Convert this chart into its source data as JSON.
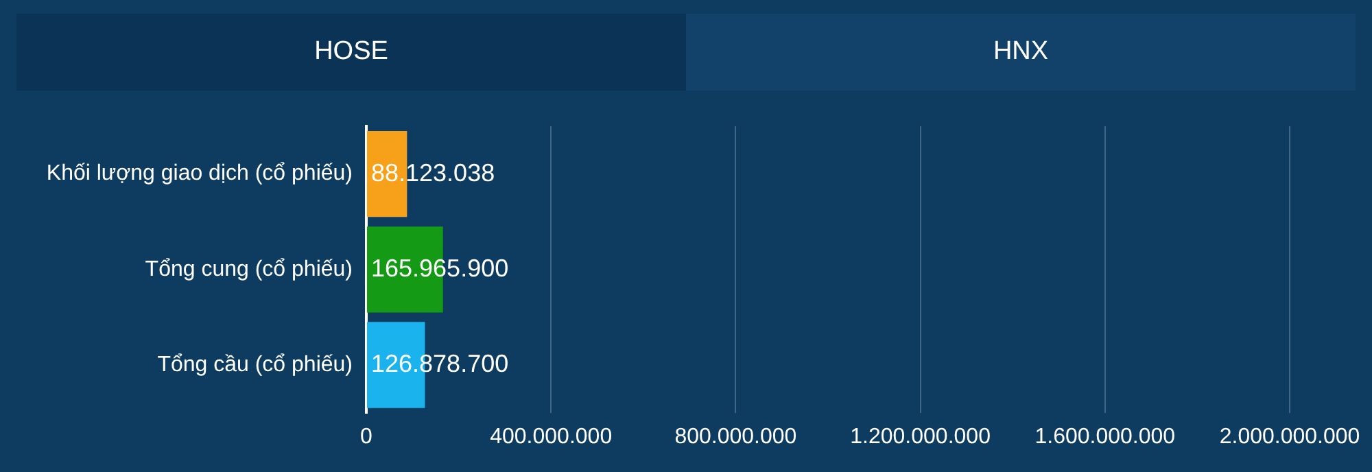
{
  "chart_data": {
    "type": "bar",
    "orientation": "horizontal",
    "annotations": [
      "HOSE",
      "HNX"
    ],
    "categories": [
      "Khối lượng giao dịch (cổ phiếu)",
      "Tổng cung (cổ phiếu)",
      "Tổng cầu (cổ phiếu)"
    ],
    "values": [
      88123038,
      165965900,
      126878700
    ],
    "value_labels": [
      "88.123.038",
      "165.965.900",
      "126.878.700"
    ],
    "colors": [
      "#f7a11a",
      "#149a14",
      "#1bb3ee"
    ],
    "xlim": [
      0,
      2000000000
    ],
    "xticks": [
      0,
      {
        "value": 400000000,
        "label": "400.000.000"
      },
      {
        "value": 800000000,
        "label": "800.000.000"
      },
      {
        "value": 1200000000,
        "label": "1.200.000.000"
      },
      {
        "value": 1600000000,
        "label": "1.600.000.000"
      },
      {
        "value": 2000000000,
        "label": "2.000.000.000"
      }
    ],
    "grid": "x"
  }
}
